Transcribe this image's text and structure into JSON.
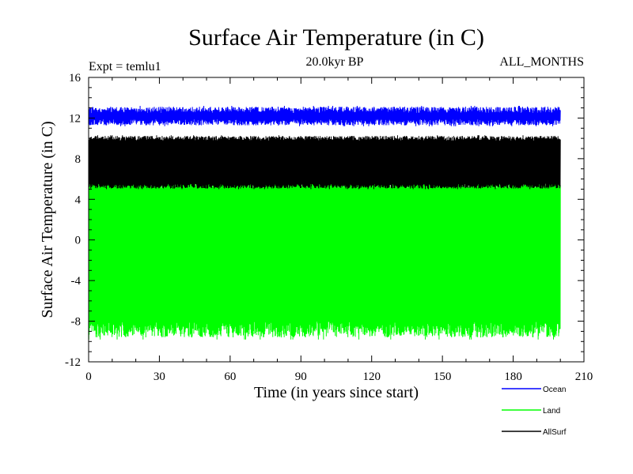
{
  "chart_data": {
    "type": "line",
    "title": "Surface Air Temperature (in C)",
    "subtitle_left": "Expt = temlu1",
    "subtitle_center": "20.0kyr BP",
    "subtitle_right": "ALL_MONTHS",
    "xlabel": "Time (in years since start)",
    "ylabel": "Surface Air Temperature (in C)",
    "xlim": [
      0,
      210
    ],
    "ylim": [
      -12,
      16
    ],
    "x_ticks": [
      0,
      30,
      60,
      90,
      120,
      150,
      180,
      210
    ],
    "y_ticks": [
      -12,
      -8,
      -4,
      0,
      4,
      8,
      12,
      16
    ],
    "x_data_end": 200,
    "series": [
      {
        "name": "Ocean",
        "color": "#0000ff",
        "min": 11.2,
        "max": 13.2,
        "typical_low": 11.6,
        "typical_high": 12.8
      },
      {
        "name": "Land",
        "color": "#00ff00",
        "min": -9.8,
        "max": 6.3,
        "typical_low": -8.8,
        "typical_high": 5.6
      },
      {
        "name": "AllSurf",
        "color": "#000000",
        "min": 5.0,
        "max": 10.3,
        "typical_low": 5.3,
        "typical_high": 10.0
      }
    ]
  }
}
